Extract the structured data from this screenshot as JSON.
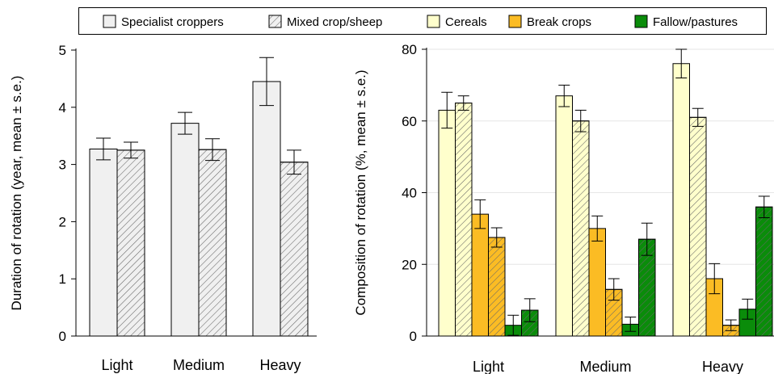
{
  "legend": {
    "items": [
      {
        "label": "Specialist croppers",
        "swatch": "plain",
        "color": "#f0f0f0"
      },
      {
        "label": "Mixed crop/sheep",
        "swatch": "hatched",
        "color": "#f0f0f0"
      },
      {
        "label": "Cereals",
        "swatch": "plain",
        "color": "#ffffcc"
      },
      {
        "label": "Break crops",
        "swatch": "plain",
        "color": "#fbbc24"
      },
      {
        "label": "Fallow/pastures",
        "swatch": "plain",
        "color": "#0a8c0a"
      }
    ]
  },
  "chart_data": [
    {
      "type": "bar",
      "id": "duration",
      "ylabel": "Duration of rotation (year, mean ± s.e.)",
      "ylim": [
        0,
        5
      ],
      "yticks": [
        "0",
        "1",
        "2",
        "3",
        "4",
        "5"
      ],
      "categories": [
        "Light",
        "Medium",
        "Heavy"
      ],
      "grid": false,
      "series": [
        {
          "name": "Specialist croppers",
          "color": "#f0f0f0",
          "hatched": false,
          "values": [
            3.27,
            3.72,
            4.45
          ],
          "errors": [
            0.19,
            0.19,
            0.42
          ]
        },
        {
          "name": "Mixed crop/sheep",
          "color": "#f0f0f0",
          "hatched": true,
          "values": [
            3.25,
            3.26,
            3.04
          ],
          "errors": [
            0.14,
            0.19,
            0.21
          ]
        }
      ]
    },
    {
      "type": "bar",
      "id": "composition",
      "ylabel": "Composition of rotation (%, mean ± s.e.)",
      "ylim": [
        0,
        80
      ],
      "yticks": [
        "0",
        "20",
        "40",
        "60",
        "80"
      ],
      "categories": [
        "Light",
        "Medium",
        "Heavy"
      ],
      "grid": true,
      "series": [
        {
          "name": "Cereals",
          "group": "Specialist croppers",
          "color": "#ffffcc",
          "hatched": false,
          "values": [
            63,
            67,
            76
          ],
          "errors": [
            5,
            3,
            4
          ]
        },
        {
          "name": "Cereals",
          "group": "Mixed crop/sheep",
          "color": "#ffffcc",
          "hatched": true,
          "values": [
            65,
            60,
            61
          ],
          "errors": [
            2,
            3,
            2.5
          ]
        },
        {
          "name": "Break crops",
          "group": "Specialist croppers",
          "color": "#fbbc24",
          "hatched": false,
          "values": [
            34,
            30,
            16
          ],
          "errors": [
            4,
            3.5,
            4.2
          ]
        },
        {
          "name": "Break crops",
          "group": "Mixed crop/sheep",
          "color": "#fbbc24",
          "hatched": true,
          "values": [
            27.5,
            13,
            3
          ],
          "errors": [
            2.7,
            3,
            1.5
          ]
        },
        {
          "name": "Fallow/pastures",
          "group": "Specialist croppers",
          "color": "#0a8c0a",
          "hatched": false,
          "values": [
            3,
            3.3,
            7.5
          ],
          "errors": [
            2.8,
            2,
            2.8
          ]
        },
        {
          "name": "Fallow/pastures",
          "group": "Mixed crop/sheep",
          "color": "#0a8c0a",
          "hatched": true,
          "values": [
            7.2,
            27,
            36
          ],
          "errors": [
            3.2,
            4.5,
            3
          ]
        }
      ]
    }
  ]
}
